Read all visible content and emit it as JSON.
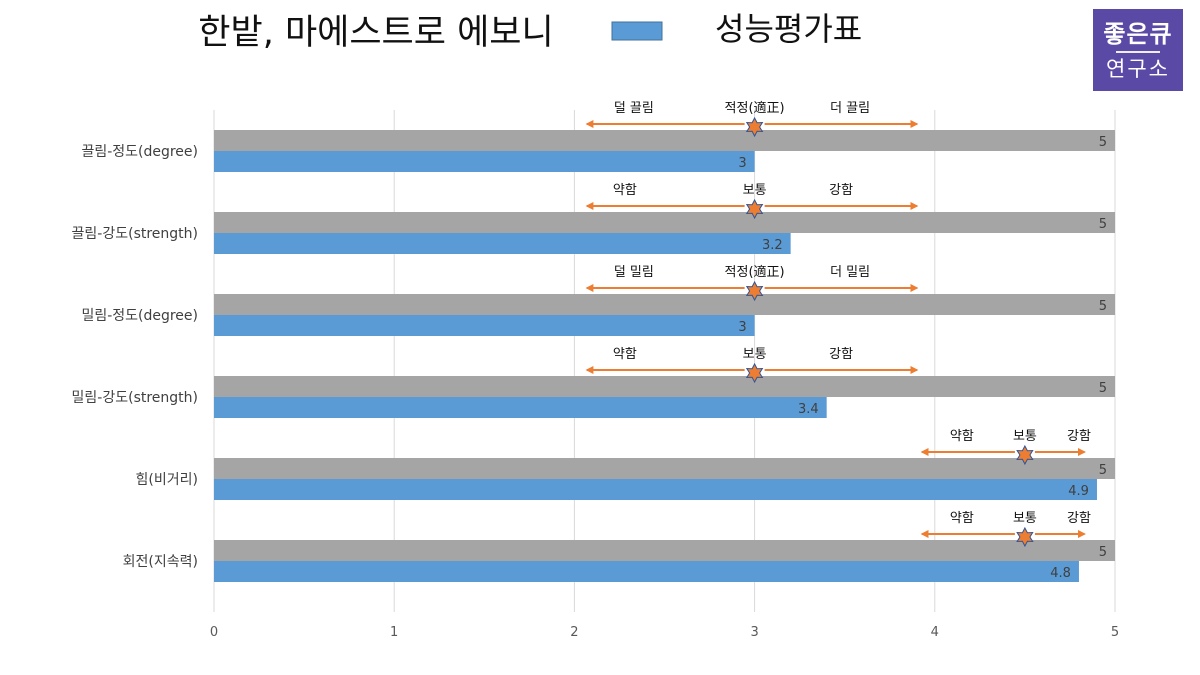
{
  "brand": {
    "line1": "좋은큐",
    "line2": "연구소"
  },
  "chart_data": {
    "type": "bar",
    "orientation": "horizontal",
    "title": "한밭, 마에스트로 에보니",
    "categories": [
      "끌림-정도(degree)",
      "끌림-강도(strength)",
      "밀림-정도(degree)",
      "밀림-강도(strength)",
      "힘(비거리)",
      "회전(지속력)"
    ],
    "series": [
      {
        "name": "",
        "color": "#a5a5a5",
        "values": [
          5,
          5,
          5,
          5,
          5,
          5
        ]
      },
      {
        "name": "성능평가표",
        "color": "#5b9bd5",
        "values": [
          3,
          3.2,
          3,
          3.4,
          4.9,
          4.8
        ]
      }
    ],
    "x_ticks": [
      "0",
      "1",
      "2",
      "3",
      "4",
      "5"
    ],
    "xlim": [
      0,
      5
    ],
    "grid": true,
    "legend": "top",
    "annotation_color": "#ed7d31",
    "annotations": [
      {
        "left": "덜 끌림",
        "center": "적정(適正)",
        "right": "더 끌림",
        "arrow_from": 2.07,
        "arrow_to": 3.9,
        "marker": 3,
        "left_at": 2.33,
        "right_at": 3.53
      },
      {
        "left": "약함",
        "center": "보통",
        "right": "강함",
        "arrow_from": 2.07,
        "arrow_to": 3.9,
        "marker": 3,
        "left_at": 2.28,
        "right_at": 3.48
      },
      {
        "left": "덜 밀림",
        "center": "적정(適正)",
        "right": "더 밀림",
        "arrow_from": 2.07,
        "arrow_to": 3.9,
        "marker": 3,
        "left_at": 2.33,
        "right_at": 3.53
      },
      {
        "left": "약함",
        "center": "보통",
        "right": "강함",
        "arrow_from": 2.07,
        "arrow_to": 3.9,
        "marker": 3,
        "left_at": 2.28,
        "right_at": 3.48
      },
      {
        "left": "약함",
        "center": "보통",
        "right": "강함",
        "arrow_from": 3.93,
        "arrow_to": 4.83,
        "marker": 4.5,
        "left_at": 4.15,
        "right_at": 4.8
      },
      {
        "left": "약함",
        "center": "보통",
        "right": "강함",
        "arrow_from": 3.93,
        "arrow_to": 4.83,
        "marker": 4.5,
        "left_at": 4.15,
        "right_at": 4.8
      }
    ]
  }
}
